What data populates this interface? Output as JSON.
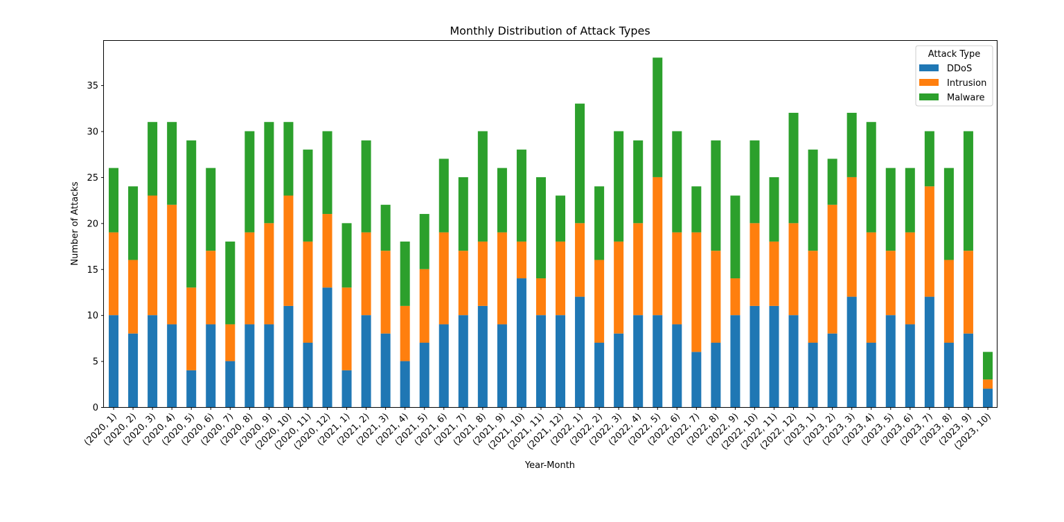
{
  "chart_data": {
    "type": "bar",
    "stacked": true,
    "title": "Monthly Distribution of Attack Types",
    "xlabel": "Year-Month",
    "ylabel": "Number of Attacks",
    "ylim": [
      0,
      39.9
    ],
    "yticks": [
      0,
      5,
      10,
      15,
      20,
      25,
      30,
      35
    ],
    "grid": false,
    "legend": {
      "title": "Attack Type",
      "position": "top-right"
    },
    "categories": [
      "(2020, 1)",
      "(2020, 2)",
      "(2020, 3)",
      "(2020, 4)",
      "(2020, 5)",
      "(2020, 6)",
      "(2020, 7)",
      "(2020, 8)",
      "(2020, 9)",
      "(2020, 10)",
      "(2020, 11)",
      "(2020, 12)",
      "(2021, 1)",
      "(2021, 2)",
      "(2021, 3)",
      "(2021, 4)",
      "(2021, 5)",
      "(2021, 6)",
      "(2021, 7)",
      "(2021, 8)",
      "(2021, 9)",
      "(2021, 10)",
      "(2021, 11)",
      "(2021, 12)",
      "(2022, 1)",
      "(2022, 2)",
      "(2022, 3)",
      "(2022, 4)",
      "(2022, 5)",
      "(2022, 6)",
      "(2022, 7)",
      "(2022, 8)",
      "(2022, 9)",
      "(2022, 10)",
      "(2022, 11)",
      "(2022, 12)",
      "(2023, 1)",
      "(2023, 2)",
      "(2023, 3)",
      "(2023, 4)",
      "(2023, 5)",
      "(2023, 6)",
      "(2023, 7)",
      "(2023, 8)",
      "(2023, 9)",
      "(2023, 10)"
    ],
    "series": [
      {
        "name": "DDoS",
        "color": "#1f77b4",
        "values": [
          10,
          8,
          10,
          9,
          4,
          9,
          5,
          9,
          9,
          11,
          7,
          13,
          4,
          10,
          8,
          5,
          7,
          9,
          10,
          11,
          9,
          14,
          10,
          10,
          12,
          7,
          8,
          10,
          10,
          9,
          6,
          7,
          10,
          11,
          11,
          10,
          7,
          8,
          12,
          7,
          10,
          9,
          12,
          7,
          8,
          2
        ]
      },
      {
        "name": "Intrusion",
        "color": "#ff7f0e",
        "values": [
          9,
          8,
          13,
          13,
          9,
          8,
          4,
          10,
          11,
          12,
          11,
          8,
          9,
          9,
          9,
          6,
          8,
          10,
          7,
          7,
          10,
          4,
          4,
          8,
          8,
          9,
          10,
          10,
          15,
          10,
          13,
          10,
          4,
          9,
          7,
          10,
          10,
          14,
          13,
          12,
          7,
          10,
          12,
          9,
          9,
          1
        ]
      },
      {
        "name": "Malware",
        "color": "#2ca02c",
        "values": [
          7,
          8,
          8,
          9,
          16,
          9,
          9,
          11,
          11,
          8,
          10,
          9,
          7,
          10,
          5,
          7,
          6,
          8,
          8,
          12,
          7,
          10,
          11,
          5,
          13,
          8,
          12,
          9,
          13,
          11,
          5,
          12,
          9,
          9,
          7,
          12,
          11,
          5,
          7,
          12,
          9,
          7,
          6,
          10,
          13,
          3
        ]
      }
    ]
  }
}
